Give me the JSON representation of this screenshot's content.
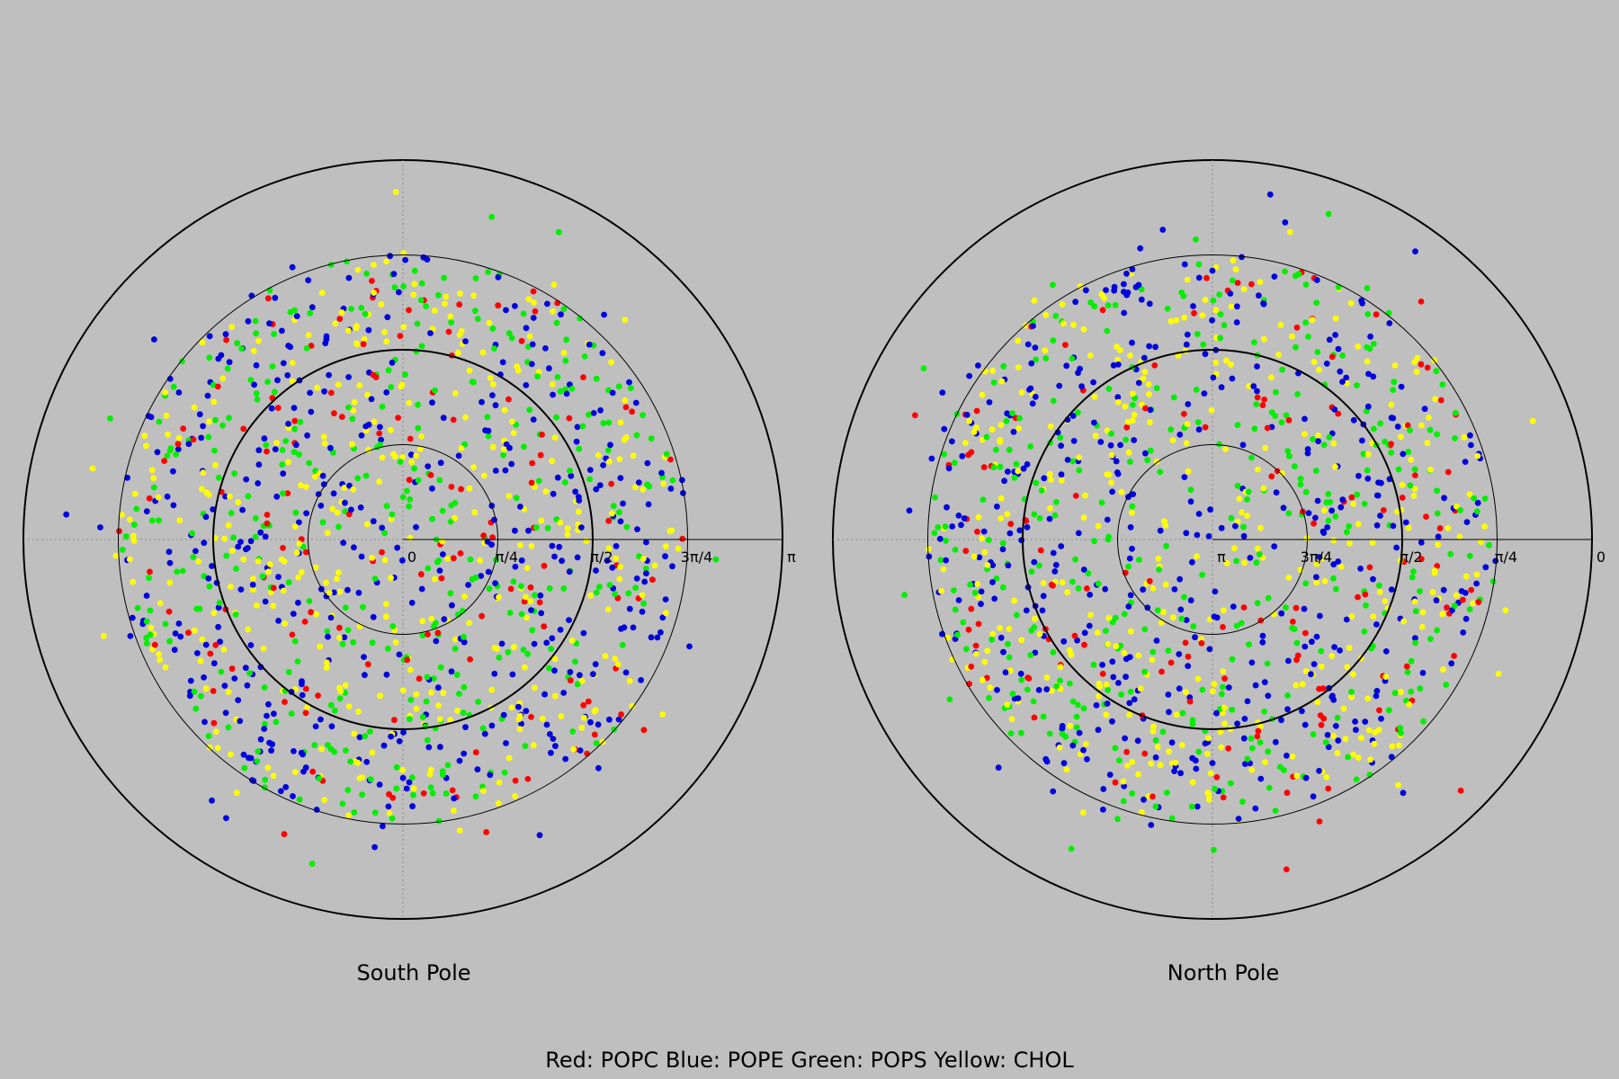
{
  "caption": "Red: POPC Blue: POPE Green: POPS Yellow: CHOL",
  "colors": {
    "POPC": "#ff0000",
    "POPE": "#0000dd",
    "POPS": "#00ee00",
    "CHOL": "#ffff00"
  },
  "chart_data": [
    {
      "type": "scatter",
      "projection": "polar",
      "subtitle": "South Pole",
      "radial_ticks": [
        "0",
        "π/4",
        "π/2",
        "3π/4",
        "π"
      ],
      "radial_range": [
        0,
        3.14159
      ],
      "series": [
        {
          "name": "POPC",
          "color": "#ff0000",
          "count": 140
        },
        {
          "name": "POPE",
          "color": "#0000dd",
          "count": 420
        },
        {
          "name": "POPS",
          "color": "#00ee00",
          "count": 360
        },
        {
          "name": "CHOL",
          "color": "#ffff00",
          "count": 360
        }
      ],
      "density_note_radial_concentration": 0.78
    },
    {
      "type": "scatter",
      "projection": "polar",
      "subtitle": "North Pole",
      "radial_ticks": [
        "π",
        "3π/4",
        "π/2",
        "π/4",
        "0"
      ],
      "radial_range": [
        3.14159,
        0
      ],
      "series": [
        {
          "name": "POPC",
          "color": "#ff0000",
          "count": 140
        },
        {
          "name": "POPE",
          "color": "#0000dd",
          "count": 420
        },
        {
          "name": "POPS",
          "color": "#00ee00",
          "count": 360
        },
        {
          "name": "CHOL",
          "color": "#ffff00",
          "count": 360
        }
      ],
      "density_note_radial_concentration": 0.78
    }
  ]
}
